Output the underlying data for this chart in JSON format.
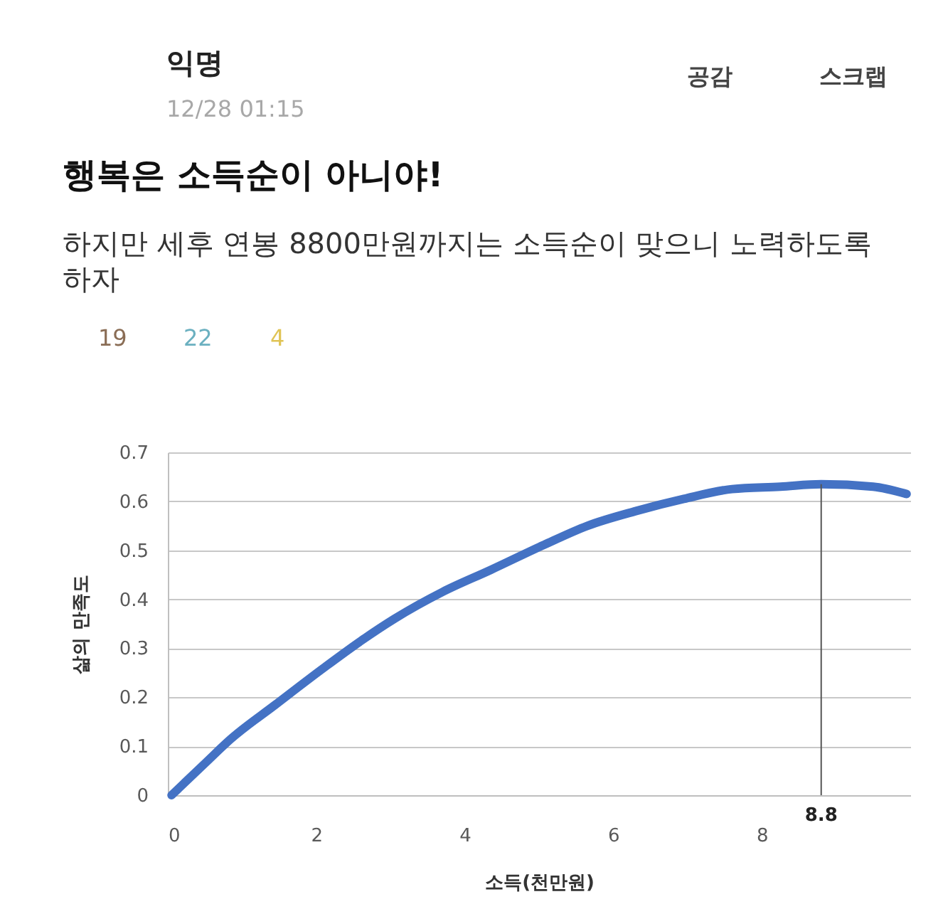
{
  "chart_data": {
    "type": "line",
    "title": "행복은 소득순이 아니야!",
    "subtitle": "하지만 세후 연봉 8800만원까지는 소득순이 맞으니 노력하도록 하자",
    "annotations": [
      "익명",
      "12/28 01:15",
      "공감",
      "스크랩",
      "19",
      "22",
      "4"
    ],
    "xlabel": "소득(천만원)",
    "ylabel": "삶의 만족도",
    "x": [
      0.05,
      0.5,
      0.85,
      1.45,
      2.1,
      2.6,
      3.05,
      3.7,
      4.35,
      5.05,
      5.65,
      6.3,
      6.95,
      7.6,
      8.25,
      8.8,
      9.5,
      9.95
    ],
    "series": [
      {
        "color": "#4472c4",
        "values": [
          0.0,
          0.065,
          0.115,
          0.185,
          0.26,
          0.315,
          0.36,
          0.415,
          0.46,
          0.51,
          0.55,
          0.58,
          0.605,
          0.625,
          0.63,
          0.635,
          0.63,
          0.615
        ]
      }
    ],
    "xlim": [
      0,
      10
    ],
    "xticks": [
      0,
      2,
      4,
      6,
      8
    ],
    "ylim": [
      0,
      0.7
    ],
    "yticks": [
      0,
      0.1,
      0.2,
      0.3,
      0.4,
      0.5,
      0.6,
      0.7
    ],
    "grid": "y",
    "ref_lines": [
      {
        "axis": "x",
        "value": 8.8,
        "label": "8.8",
        "color": "#555555"
      }
    ]
  }
}
